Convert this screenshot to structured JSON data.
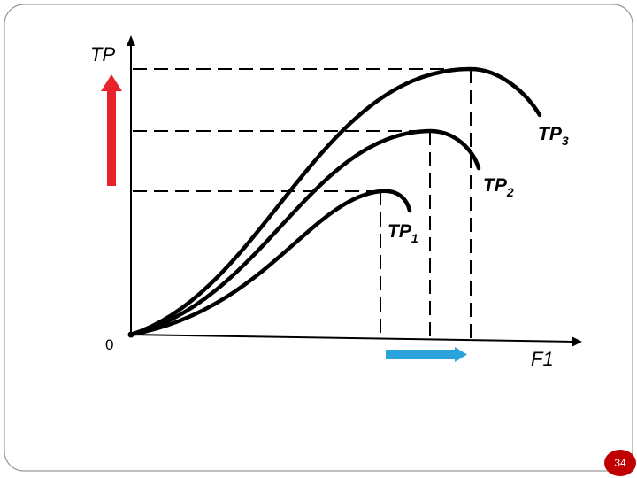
{
  "axes": {
    "y_label": "TP",
    "x_label": "F1",
    "origin_label": "0"
  },
  "curves": [
    {
      "name": "TP",
      "subscript": "1"
    },
    {
      "name": "TP",
      "subscript": "2"
    },
    {
      "name": "TP",
      "subscript": "3"
    }
  ],
  "arrows": {
    "vertical_color": "#e8232a",
    "horizontal_color": "#2aa3dd"
  },
  "page_number": "34"
}
